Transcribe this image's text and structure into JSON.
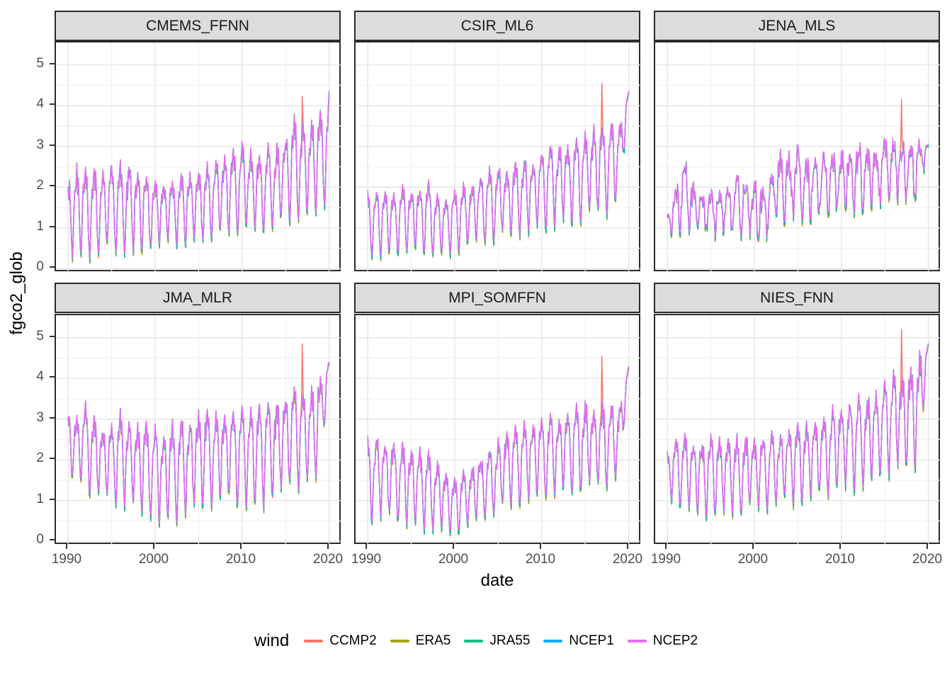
{
  "chart_data": {
    "type": "line",
    "title": "",
    "xlabel": "date",
    "ylabel": "fgco2_glob",
    "legend_title": "wind",
    "legend_position": "bottom",
    "grid": true,
    "x_ticks": [
      1990,
      2000,
      2010,
      2020
    ],
    "x_minor_ticks": [
      1995,
      2005,
      2015
    ],
    "y_ticks": [
      0,
      1,
      2,
      3,
      4,
      5
    ],
    "y_minor_ticks": [
      0.5,
      1.5,
      2.5,
      3.5,
      4.5
    ],
    "x_domain": [
      1988.6,
      2021.5
    ],
    "y_domain": [
      -0.1,
      5.55
    ],
    "start_year": 1990,
    "end_year": 2020,
    "points_per_year": 12,
    "seasonal_shape": [
      1.0,
      0.8,
      0.9,
      0.62,
      0.3,
      0.08,
      0.0,
      0.22,
      0.55,
      0.78,
      0.7,
      0.88
    ],
    "series": [
      {
        "name": "CCMP2",
        "color": "#F8766D",
        "peak_offset": -0.05,
        "trough_offset": -0.13,
        "jitter": 0.03
      },
      {
        "name": "ERA5",
        "color": "#A3A500",
        "peak_offset": -0.09,
        "trough_offset": -0.12,
        "jitter": 0.03
      },
      {
        "name": "JRA55",
        "color": "#00BF7D",
        "peak_offset": -0.02,
        "trough_offset": -0.09,
        "jitter": 0.04
      },
      {
        "name": "NCEP1",
        "color": "#00B0F6",
        "peak_offset": -0.045,
        "trough_offset": -0.03,
        "jitter": 0.02
      },
      {
        "name": "NCEP2",
        "color": "#E76BF3",
        "peak_offset": 0.0,
        "trough_offset": 0.0,
        "jitter": 0.015
      }
    ],
    "facets": [
      {
        "label": "CMEMS_FFNN",
        "noise": 0.07,
        "env_max": [
          2.1,
          2.55,
          2.4,
          2.35,
          2.45,
          2.6,
          2.5,
          2.6,
          2.4,
          2.3,
          2.1,
          2.15,
          2.15,
          2.25,
          2.35,
          2.45,
          2.5,
          2.6,
          2.8,
          2.9,
          3.0,
          2.95,
          2.9,
          3.0,
          3.05,
          3.3,
          3.65,
          3.55,
          3.6,
          3.9,
          4.15
        ],
        "env_min": [
          0.25,
          0.3,
          0.35,
          0.4,
          0.45,
          0.5,
          0.45,
          0.35,
          0.5,
          0.55,
          0.6,
          0.65,
          0.7,
          0.7,
          0.75,
          0.8,
          0.8,
          0.85,
          0.9,
          0.95,
          1.0,
          0.95,
          0.9,
          1.0,
          1.1,
          1.2,
          1.3,
          1.35,
          1.4,
          1.5,
          1.9
        ],
        "ccmp2_spike": {
          "t": 2016.9,
          "value": 4.22
        }
      },
      {
        "label": "CSIR_ML6",
        "noise": 0.07,
        "env_max": [
          1.8,
          1.9,
          1.95,
          1.9,
          1.95,
          2.0,
          2.05,
          2.05,
          1.9,
          1.8,
          1.95,
          2.0,
          2.15,
          2.3,
          2.4,
          2.5,
          2.55,
          2.6,
          2.65,
          2.7,
          2.85,
          3.0,
          3.05,
          3.1,
          3.2,
          3.3,
          3.5,
          3.45,
          3.6,
          3.75,
          4.35
        ],
        "env_min": [
          0.45,
          0.4,
          0.35,
          0.45,
          0.5,
          0.5,
          0.45,
          0.45,
          0.35,
          0.4,
          0.5,
          0.55,
          0.65,
          0.7,
          0.75,
          0.8,
          0.85,
          0.9,
          0.95,
          1.0,
          1.05,
          1.1,
          1.15,
          1.2,
          1.25,
          1.3,
          1.3,
          1.4,
          1.5,
          1.6,
          4.35
        ],
        "ccmp2_spike": {
          "t": 2016.9,
          "value": 4.55
        }
      },
      {
        "label": "JENA_MLS",
        "noise": 0.22,
        "env_max": [
          1.4,
          2.0,
          2.75,
          2.1,
          1.8,
          1.9,
          2.0,
          2.1,
          2.2,
          2.1,
          2.1,
          1.9,
          2.4,
          2.8,
          2.9,
          2.9,
          2.7,
          2.7,
          2.75,
          2.8,
          2.9,
          2.9,
          2.95,
          3.0,
          3.0,
          3.1,
          3.1,
          3.15,
          3.1,
          3.1,
          3.05
        ],
        "env_min": [
          0.85,
          0.95,
          1.0,
          1.0,
          1.0,
          0.9,
          0.8,
          0.85,
          0.8,
          0.9,
          0.9,
          0.6,
          1.1,
          1.3,
          1.2,
          1.25,
          1.3,
          1.3,
          1.4,
          1.5,
          1.45,
          1.4,
          1.5,
          1.6,
          1.65,
          1.7,
          1.7,
          1.75,
          1.8,
          1.9,
          3.05
        ],
        "ccmp2_spike": {
          "t": 2016.9,
          "value": 4.15
        }
      },
      {
        "label": "JMA_MLR",
        "noise": 0.07,
        "env_max": [
          3.05,
          3.2,
          3.3,
          3.0,
          2.8,
          2.9,
          3.1,
          3.0,
          2.9,
          2.85,
          2.8,
          2.75,
          2.85,
          2.9,
          3.05,
          3.2,
          3.15,
          3.1,
          3.2,
          3.2,
          3.3,
          3.3,
          3.4,
          3.4,
          3.5,
          3.6,
          3.8,
          3.6,
          3.9,
          4.1,
          4.4
        ],
        "env_min": [
          1.5,
          1.45,
          1.4,
          1.2,
          1.1,
          1.05,
          1.0,
          0.95,
          0.9,
          0.8,
          0.65,
          0.4,
          0.55,
          0.7,
          0.8,
          0.9,
          1.0,
          1.0,
          1.1,
          1.1,
          0.85,
          0.9,
          0.9,
          1.0,
          1.2,
          1.3,
          1.4,
          1.45,
          1.5,
          1.6,
          4.4
        ],
        "ccmp2_spike": {
          "t": 2016.9,
          "value": 4.85
        }
      },
      {
        "label": "MPI_SOMFFN",
        "noise": 0.07,
        "env_max": [
          2.45,
          2.5,
          2.55,
          2.4,
          2.3,
          2.3,
          2.3,
          2.1,
          1.9,
          1.7,
          1.5,
          1.7,
          1.9,
          2.05,
          2.2,
          2.5,
          2.7,
          2.8,
          2.9,
          2.95,
          3.0,
          3.05,
          3.1,
          3.2,
          3.3,
          3.35,
          3.4,
          3.3,
          3.3,
          3.5,
          4.3
        ],
        "env_min": [
          0.6,
          0.65,
          0.65,
          0.6,
          0.55,
          0.5,
          0.4,
          0.4,
          0.35,
          0.3,
          0.25,
          0.4,
          0.5,
          0.6,
          0.7,
          0.8,
          0.9,
          1.0,
          1.1,
          1.15,
          1.2,
          1.2,
          1.2,
          1.25,
          1.3,
          1.35,
          1.4,
          1.45,
          1.5,
          1.5,
          4.3
        ],
        "ccmp2_spike": {
          "t": 2016.9,
          "value": 4.55
        }
      },
      {
        "label": "NIES_FNN",
        "noise": 0.07,
        "env_max": [
          2.3,
          2.55,
          2.6,
          2.5,
          2.4,
          2.5,
          2.6,
          2.55,
          2.5,
          2.55,
          2.6,
          2.55,
          2.6,
          2.7,
          2.8,
          2.85,
          2.9,
          3.0,
          3.1,
          3.2,
          3.4,
          3.45,
          3.5,
          3.6,
          3.7,
          3.9,
          4.2,
          4.1,
          4.3,
          4.5,
          4.85
        ],
        "env_min": [
          1.0,
          0.95,
          0.9,
          0.8,
          0.75,
          0.7,
          0.7,
          0.75,
          0.8,
          0.8,
          0.8,
          0.85,
          0.9,
          0.95,
          1.0,
          1.05,
          1.1,
          1.15,
          1.2,
          1.25,
          1.3,
          1.35,
          1.4,
          1.5,
          1.6,
          1.7,
          1.8,
          1.85,
          1.9,
          2.0,
          4.85
        ],
        "ccmp2_spike": {
          "t": 2016.9,
          "value": 5.2
        }
      }
    ],
    "colors": {
      "strip_background": "#DCDCDC",
      "panel_border": "#2b2b2b",
      "grid_major": "#E4E4E4",
      "grid_minor": "#F2F2F2",
      "tick_text": "#4d4d4d",
      "title_text": "#000000"
    }
  }
}
